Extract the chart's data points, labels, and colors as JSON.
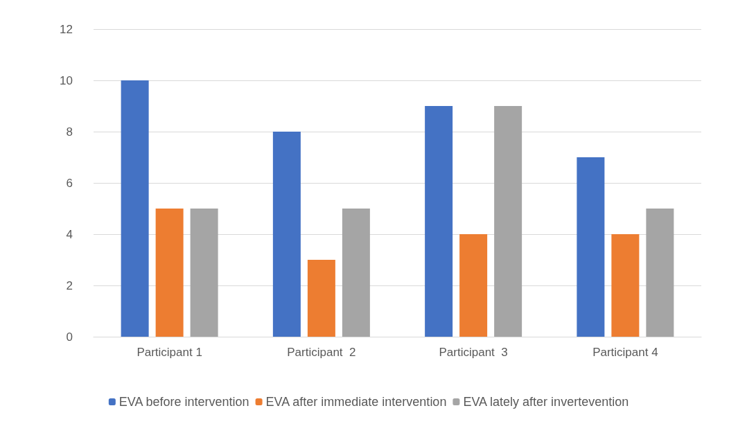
{
  "chart_data": {
    "type": "bar",
    "categories": [
      "Participant 1",
      "Participant  2",
      "Participant  3",
      "Participant 4"
    ],
    "series": [
      {
        "name": "EVA before intervention",
        "color": "#4472c4",
        "values": [
          10,
          8,
          9,
          7
        ]
      },
      {
        "name": "EVA after immediate intervention",
        "color": "#ed7d31",
        "values": [
          5,
          3,
          4,
          4
        ]
      },
      {
        "name": "EVA lately after invertevention",
        "color": "#a5a5a5",
        "values": [
          5,
          5,
          9,
          5
        ]
      }
    ],
    "ylim": [
      0,
      12
    ],
    "yticks": [
      0,
      2,
      4,
      6,
      8,
      10,
      12
    ],
    "grid": "y",
    "legend": "bottom"
  }
}
